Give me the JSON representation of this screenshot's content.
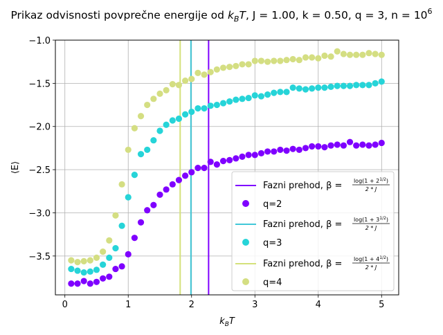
{
  "chart_data": {
    "type": "scatter",
    "title": "Prikaz odvisnosti povprečne energije od",
    "title_params": {
      "x_symbol": "k",
      "x_subscript": "B",
      "x_var": "T",
      "rest": ", J = 1.00, k = 0.50, q = 3, n = 10",
      "rest_exponent": "6"
    },
    "xlabel": {
      "main": "k",
      "sub": "B",
      "tail": "T"
    },
    "ylabel": "⟨E⟩",
    "xlim": [
      -0.15,
      5.27
    ],
    "ylim": [
      -3.95,
      -1.0
    ],
    "xticks": [
      0,
      1,
      2,
      3,
      4,
      5
    ],
    "yticks": [
      -1.0,
      -1.5,
      -2.0,
      -2.5,
      -3.0,
      -3.5
    ],
    "xtick_labels": [
      "0",
      "1",
      "2",
      "3",
      "4",
      "5"
    ],
    "ytick_labels": [
      "−1.0",
      "−1.5",
      "−2.0",
      "−2.5",
      "−3.0",
      "−3.5"
    ],
    "grid": true,
    "legend_position": "lower right",
    "vlines": [
      {
        "label_prefix": "Fazni prehod, β = ",
        "numerator": "log(1 + 2",
        "exponent": "1/2",
        "numerator_close": ")",
        "denominator": "2 * J",
        "x": 2.269,
        "color": "#7f00ff"
      },
      {
        "label_prefix": "Fazni prehod, β = ",
        "numerator": "log(1 + 3",
        "exponent": "1/2",
        "numerator_close": ")",
        "denominator": "2 * J",
        "x": 1.99,
        "color": "#40c8d8"
      },
      {
        "label_prefix": "Fazni prehod, β = ",
        "numerator": "log(1 + 4",
        "exponent": "1/2",
        "numerator_close": ")",
        "denominator": "2 * J",
        "x": 1.82,
        "color": "#d4e17a"
      }
    ],
    "series": [
      {
        "name": "q=2",
        "color": "#7f00ff",
        "x": [
          0.1,
          0.2,
          0.3,
          0.4,
          0.5,
          0.6,
          0.7,
          0.8,
          0.9,
          1.0,
          1.1,
          1.2,
          1.3,
          1.4,
          1.5,
          1.6,
          1.7,
          1.8,
          1.9,
          2.0,
          2.1,
          2.2,
          2.3,
          2.4,
          2.5,
          2.6,
          2.7,
          2.8,
          2.9,
          3.0,
          3.1,
          3.2,
          3.3,
          3.4,
          3.5,
          3.6,
          3.7,
          3.8,
          3.9,
          4.0,
          4.1,
          4.2,
          4.3,
          4.4,
          4.5,
          4.6,
          4.7,
          4.8,
          4.9,
          5.0
        ],
        "y": [
          -3.82,
          -3.82,
          -3.79,
          -3.82,
          -3.8,
          -3.76,
          -3.74,
          -3.65,
          -3.62,
          -3.48,
          -3.29,
          -3.11,
          -2.97,
          -2.91,
          -2.79,
          -2.73,
          -2.67,
          -2.62,
          -2.57,
          -2.53,
          -2.48,
          -2.48,
          -2.41,
          -2.44,
          -2.4,
          -2.39,
          -2.37,
          -2.35,
          -2.33,
          -2.33,
          -2.31,
          -2.29,
          -2.29,
          -2.27,
          -2.28,
          -2.26,
          -2.27,
          -2.25,
          -2.23,
          -2.23,
          -2.24,
          -2.22,
          -2.21,
          -2.22,
          -2.18,
          -2.22,
          -2.21,
          -2.22,
          -2.21,
          -2.19
        ]
      },
      {
        "name": "q=3",
        "color": "#26d4d8",
        "x": [
          0.1,
          0.2,
          0.3,
          0.4,
          0.5,
          0.6,
          0.7,
          0.8,
          0.9,
          1.0,
          1.1,
          1.2,
          1.3,
          1.4,
          1.5,
          1.6,
          1.7,
          1.8,
          1.9,
          2.0,
          2.1,
          2.2,
          2.3,
          2.4,
          2.5,
          2.6,
          2.7,
          2.8,
          2.9,
          3.0,
          3.1,
          3.2,
          3.3,
          3.4,
          3.5,
          3.6,
          3.7,
          3.8,
          3.9,
          4.0,
          4.1,
          4.2,
          4.3,
          4.4,
          4.5,
          4.6,
          4.7,
          4.8,
          4.9,
          5.0
        ],
        "y": [
          -3.65,
          -3.67,
          -3.69,
          -3.68,
          -3.66,
          -3.6,
          -3.52,
          -3.41,
          -3.15,
          -2.82,
          -2.56,
          -2.32,
          -2.27,
          -2.16,
          -2.05,
          -1.98,
          -1.93,
          -1.91,
          -1.86,
          -1.83,
          -1.79,
          -1.79,
          -1.76,
          -1.75,
          -1.73,
          -1.71,
          -1.69,
          -1.68,
          -1.67,
          -1.64,
          -1.65,
          -1.63,
          -1.61,
          -1.6,
          -1.6,
          -1.55,
          -1.56,
          -1.57,
          -1.56,
          -1.55,
          -1.55,
          -1.54,
          -1.53,
          -1.53,
          -1.53,
          -1.52,
          -1.52,
          -1.52,
          -1.5,
          -1.48
        ]
      },
      {
        "name": "q=4",
        "color": "#d4de82",
        "x": [
          0.1,
          0.2,
          0.3,
          0.4,
          0.5,
          0.6,
          0.7,
          0.8,
          0.9,
          1.0,
          1.1,
          1.2,
          1.3,
          1.4,
          1.5,
          1.6,
          1.7,
          1.8,
          1.9,
          2.0,
          2.1,
          2.2,
          2.3,
          2.4,
          2.5,
          2.6,
          2.7,
          2.8,
          2.9,
          3.0,
          3.1,
          3.2,
          3.3,
          3.4,
          3.5,
          3.6,
          3.7,
          3.8,
          3.9,
          4.0,
          4.1,
          4.2,
          4.3,
          4.4,
          4.5,
          4.6,
          4.7,
          4.8,
          4.9,
          5.0
        ],
        "y": [
          -3.55,
          -3.57,
          -3.56,
          -3.55,
          -3.52,
          -3.45,
          -3.32,
          -3.03,
          -2.67,
          -2.27,
          -2.02,
          -1.88,
          -1.75,
          -1.68,
          -1.62,
          -1.58,
          -1.51,
          -1.52,
          -1.47,
          -1.45,
          -1.38,
          -1.4,
          -1.37,
          -1.34,
          -1.32,
          -1.31,
          -1.3,
          -1.28,
          -1.28,
          -1.24,
          -1.24,
          -1.25,
          -1.24,
          -1.24,
          -1.23,
          -1.22,
          -1.23,
          -1.2,
          -1.2,
          -1.21,
          -1.18,
          -1.19,
          -1.13,
          -1.16,
          -1.17,
          -1.17,
          -1.17,
          -1.15,
          -1.16,
          -1.17
        ]
      }
    ]
  }
}
